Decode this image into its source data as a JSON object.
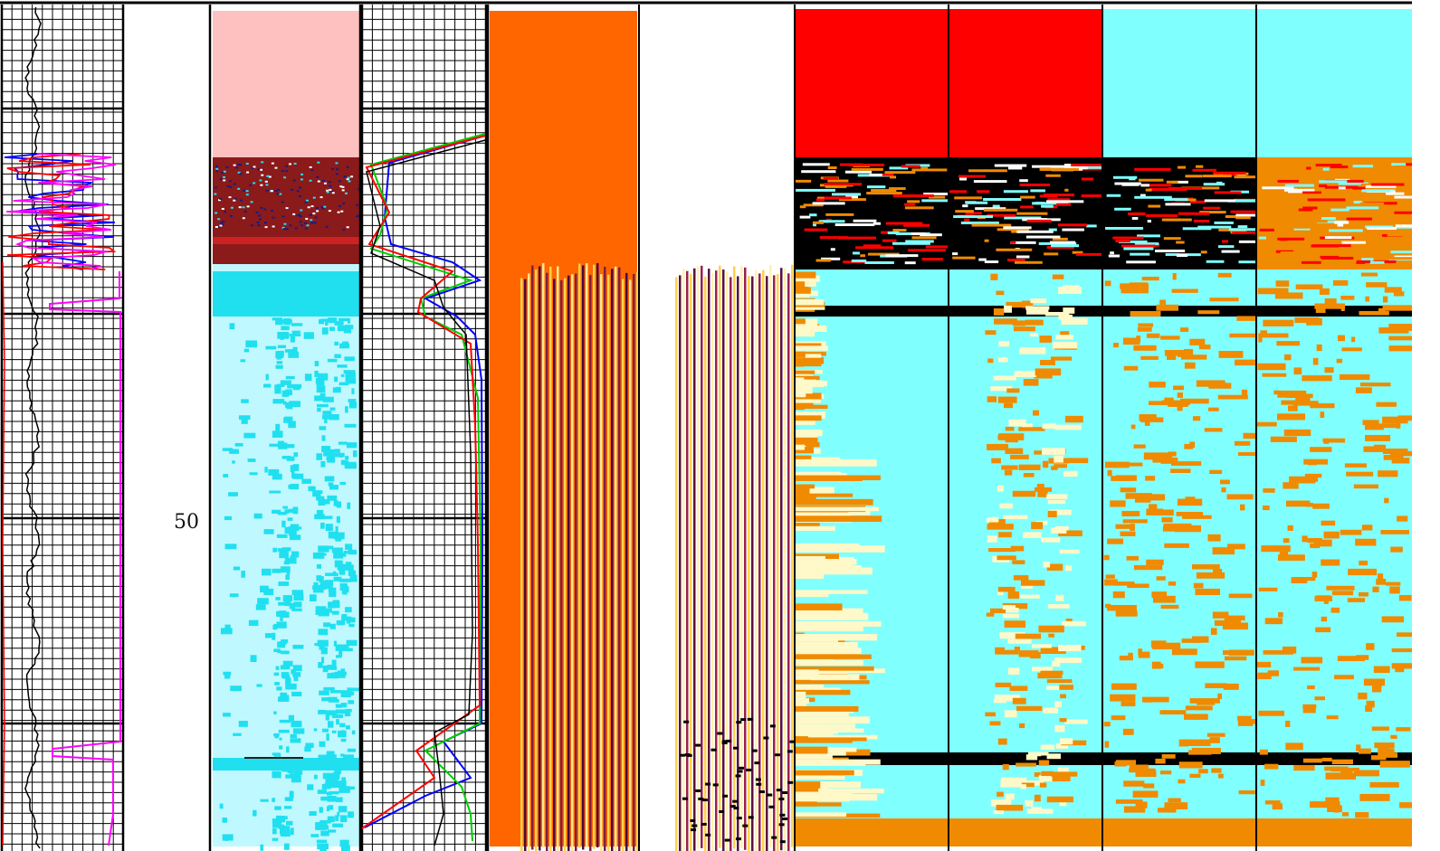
{
  "chart_data": {
    "type": "well-log",
    "depth_ticks": [
      {
        "label": "50",
        "value": 50
      }
    ],
    "colors": {
      "grid": "#000000",
      "curve_black": "#000000",
      "curve_red": "#ff0000",
      "curve_blue": "#0000ff",
      "curve_magenta": "#ff00ff",
      "curve_green": "#00cc00",
      "facies_pink": "#ffc0c0",
      "facies_maroon": "#8b1a1a",
      "facies_lightcyan": "#c0f8ff",
      "facies_cyan": "#20e0f0",
      "orange": "#ff6600",
      "image_orange": "#f08a00",
      "red": "#ff0000",
      "cyan": "#80ffff",
      "cream": "#fff8c8",
      "black": "#000000"
    },
    "tracks": [
      {
        "name": "track-1-log-curves",
        "type": "curves",
        "series": [
          "black",
          "red",
          "blue",
          "magenta"
        ]
      },
      {
        "name": "track-2-facies-column",
        "type": "facies"
      },
      {
        "name": "track-3-log-curves",
        "type": "curves",
        "series": [
          "black",
          "red",
          "blue",
          "green"
        ]
      },
      {
        "name": "track-4-waveform",
        "type": "waveform"
      },
      {
        "name": "track-5-waveform",
        "type": "waveform"
      },
      {
        "name": "track-6-image-a",
        "type": "image"
      },
      {
        "name": "track-7-image-b",
        "type": "image"
      },
      {
        "name": "track-8-image-c",
        "type": "image"
      },
      {
        "name": "track-9-image-d",
        "type": "image"
      }
    ]
  }
}
